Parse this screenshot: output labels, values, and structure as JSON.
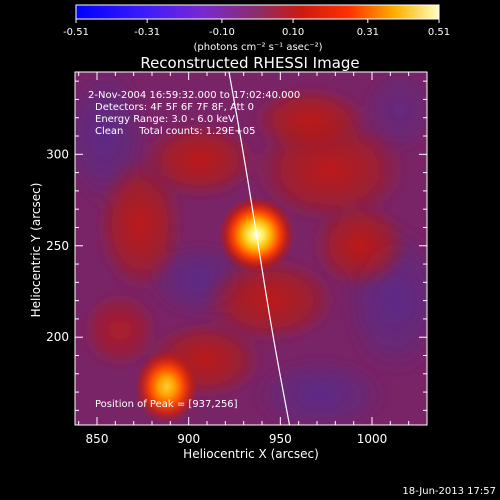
{
  "chart_data": {
    "type": "heatmap",
    "title": "Reconstructed RHESSI Image",
    "xlabel": "Heliocentric X (arcsec)",
    "ylabel": "Heliocentric Y (arcsec)",
    "x_range": [
      838,
      1030
    ],
    "y_range": [
      152,
      345
    ],
    "x_ticks": [
      850,
      900,
      950,
      1000
    ],
    "y_ticks": [
      200,
      250,
      300
    ],
    "colorbar": {
      "ticks": [
        "-0.51",
        "-0.31",
        "-0.10",
        "0.10",
        "0.31",
        "0.51"
      ],
      "range": [
        -0.51,
        0.51
      ],
      "units": "(photons cm⁻² s⁻¹ asec⁻²)"
    },
    "annotations": [
      "2-Nov-2004 16:59:32.000 to 17:02:40.000",
      "Detectors: 4F 5F 6F 7F 8F, Att 0",
      "Energy Range: 3.0 - 6.0 keV",
      "Clean     Total counts: 1.29E+05"
    ],
    "peak_label": "Position of Peak = [937,256]",
    "sources": [
      {
        "x": 937,
        "y": 256,
        "peak": 0.51
      },
      {
        "x": 888,
        "y": 173,
        "peak": 0.36
      }
    ],
    "limb_curve": [
      [
        922,
        345
      ],
      [
        930,
        300
      ],
      [
        938,
        250
      ],
      [
        946,
        200
      ],
      [
        955,
        152
      ]
    ],
    "date_stamp": "18-Jun-2013 17:57"
  }
}
